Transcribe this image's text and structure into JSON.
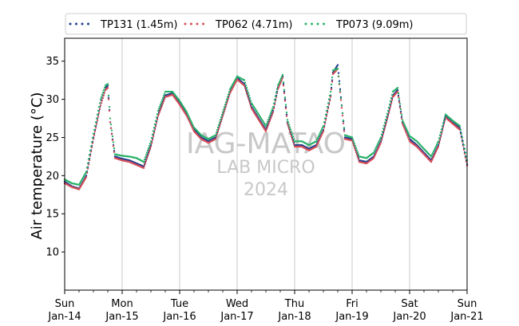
{
  "chart_data": {
    "type": "scatter",
    "title": "",
    "xlabel": "",
    "ylabel": "Air temperature (°C)",
    "ylim": [
      5,
      38
    ],
    "xlim": [
      "2024-01-14",
      "2024-01-21"
    ],
    "yticks": [
      10,
      15,
      20,
      25,
      30,
      35
    ],
    "xticks": [
      {
        "date": "2024-01-14",
        "day": "Sun",
        "label": "Jan-14"
      },
      {
        "date": "2024-01-15",
        "day": "Mon",
        "label": "Jan-15"
      },
      {
        "date": "2024-01-16",
        "day": "Tue",
        "label": "Jan-16"
      },
      {
        "date": "2024-01-17",
        "day": "Wed",
        "label": "Jan-17"
      },
      {
        "date": "2024-01-18",
        "day": "Thu",
        "label": "Jan-18"
      },
      {
        "date": "2024-01-19",
        "day": "Fri",
        "label": "Jan-19"
      },
      {
        "date": "2024-01-20",
        "day": "Sat",
        "label": "Jan-20"
      },
      {
        "date": "2024-01-21",
        "day": "Sun",
        "label": "Jan-21"
      }
    ],
    "grid": "vertical-at-day-ticks",
    "legend": "top",
    "watermark": {
      "line1": "IAG-MATAO",
      "line2": "LAB MICRO",
      "line3": "2024"
    },
    "series": [
      {
        "name": "TP131 (1.45m)",
        "color": "#1f3f8f",
        "x": [
          "2024-01-14 00:00",
          "2024-01-14 03:00",
          "2024-01-14 06:00",
          "2024-01-14 09:00",
          "2024-01-14 12:00",
          "2024-01-14 15:00",
          "2024-01-14 17:00",
          "2024-01-14 18:00",
          "2024-01-14 19:00",
          "2024-01-14 21:00",
          "2024-01-15 00:00",
          "2024-01-15 03:00",
          "2024-01-15 06:00",
          "2024-01-15 09:00",
          "2024-01-15 12:00",
          "2024-01-15 15:00",
          "2024-01-15 18:00",
          "2024-01-15 21:00",
          "2024-01-16 00:00",
          "2024-01-16 03:00",
          "2024-01-16 06:00",
          "2024-01-16 09:00",
          "2024-01-16 12:00",
          "2024-01-16 15:00",
          "2024-01-16 18:00",
          "2024-01-16 21:00",
          "2024-01-17 00:00",
          "2024-01-17 03:00",
          "2024-01-17 06:00",
          "2024-01-17 09:00",
          "2024-01-17 12:00",
          "2024-01-17 15:00",
          "2024-01-17 17:00",
          "2024-01-17 19:00",
          "2024-01-17 21:00",
          "2024-01-18 00:00",
          "2024-01-18 03:00",
          "2024-01-18 06:00",
          "2024-01-18 09:00",
          "2024-01-18 12:00",
          "2024-01-18 15:00",
          "2024-01-18 16:00",
          "2024-01-18 18:00",
          "2024-01-18 21:00",
          "2024-01-19 00:00",
          "2024-01-19 03:00",
          "2024-01-19 06:00",
          "2024-01-19 09:00",
          "2024-01-19 12:00",
          "2024-01-19 15:00",
          "2024-01-19 17:00",
          "2024-01-19 19:00",
          "2024-01-19 21:00",
          "2024-01-20 00:00",
          "2024-01-20 03:00",
          "2024-01-20 06:00",
          "2024-01-20 09:00",
          "2024-01-20 12:00",
          "2024-01-20 15:00",
          "2024-01-20 18:00",
          "2024-01-20 21:00",
          "2024-01-21 00:00"
        ],
        "y": [
          19.2,
          18.6,
          18.3,
          20,
          25,
          29.5,
          31.5,
          31.8,
          27,
          22.5,
          22.2,
          22,
          21.6,
          21.2,
          24,
          28,
          30.5,
          30.8,
          29.5,
          28,
          26,
          25,
          24.5,
          25,
          28,
          31,
          32.8,
          32,
          29,
          27.5,
          26,
          28.5,
          31.5,
          33,
          27,
          24,
          24,
          23.5,
          24,
          26,
          30.5,
          33.5,
          34.5,
          25,
          24.8,
          22,
          21.8,
          22.5,
          24.5,
          28,
          30.5,
          31.2,
          27,
          24.8,
          24,
          23,
          22,
          24,
          27.8,
          27,
          26.2,
          21.5
        ]
      },
      {
        "name": "TP062 (4.71m)",
        "color": "#d6505a",
        "x": [
          "2024-01-14 00:00",
          "2024-01-14 03:00",
          "2024-01-14 06:00",
          "2024-01-14 09:00",
          "2024-01-14 12:00",
          "2024-01-14 15:00",
          "2024-01-14 17:00",
          "2024-01-14 18:00",
          "2024-01-14 19:00",
          "2024-01-14 21:00",
          "2024-01-15 00:00",
          "2024-01-15 03:00",
          "2024-01-15 06:00",
          "2024-01-15 09:00",
          "2024-01-15 12:00",
          "2024-01-15 15:00",
          "2024-01-15 18:00",
          "2024-01-15 21:00",
          "2024-01-16 00:00",
          "2024-01-16 03:00",
          "2024-01-16 06:00",
          "2024-01-16 09:00",
          "2024-01-16 12:00",
          "2024-01-16 15:00",
          "2024-01-16 18:00",
          "2024-01-16 21:00",
          "2024-01-17 00:00",
          "2024-01-17 03:00",
          "2024-01-17 06:00",
          "2024-01-17 09:00",
          "2024-01-17 12:00",
          "2024-01-17 15:00",
          "2024-01-17 17:00",
          "2024-01-17 19:00",
          "2024-01-17 21:00",
          "2024-01-18 00:00",
          "2024-01-18 03:00",
          "2024-01-18 06:00",
          "2024-01-18 09:00",
          "2024-01-18 12:00",
          "2024-01-18 15:00",
          "2024-01-18 16:00",
          "2024-01-18 18:00",
          "2024-01-18 21:00",
          "2024-01-19 00:00",
          "2024-01-19 03:00",
          "2024-01-19 06:00",
          "2024-01-19 09:00",
          "2024-01-19 12:00",
          "2024-01-19 15:00",
          "2024-01-19 17:00",
          "2024-01-19 19:00",
          "2024-01-19 21:00",
          "2024-01-20 00:00",
          "2024-01-20 03:00",
          "2024-01-20 06:00",
          "2024-01-20 09:00",
          "2024-01-20 12:00",
          "2024-01-20 15:00",
          "2024-01-20 18:00",
          "2024-01-20 21:00",
          "2024-01-21 00:00"
        ],
        "y": [
          19,
          18.5,
          18.2,
          19.8,
          24.8,
          29.2,
          31.2,
          31.5,
          27,
          22.3,
          22,
          21.8,
          21.4,
          21,
          23.8,
          27.8,
          30.3,
          30.6,
          29.3,
          27.8,
          25.8,
          24.8,
          24.3,
          24.8,
          27.8,
          30.8,
          32.6,
          31.8,
          28.8,
          27.3,
          25.8,
          28.3,
          31.3,
          32.8,
          26.8,
          23.8,
          23.8,
          23.3,
          23.8,
          25.8,
          30.3,
          33.3,
          34,
          24.8,
          24.6,
          21.8,
          21.6,
          22.3,
          24.3,
          27.8,
          30.3,
          31,
          26.8,
          24.5,
          23.8,
          22.8,
          21.8,
          23.8,
          27.6,
          26.8,
          26,
          21.3
        ]
      },
      {
        "name": "TP073 (9.09m)",
        "color": "#2ab26a",
        "x": [
          "2024-01-14 00:00",
          "2024-01-14 03:00",
          "2024-01-14 06:00",
          "2024-01-14 09:00",
          "2024-01-14 12:00",
          "2024-01-14 15:00",
          "2024-01-14 17:00",
          "2024-01-14 18:00",
          "2024-01-14 19:00",
          "2024-01-14 21:00",
          "2024-01-15 00:00",
          "2024-01-15 03:00",
          "2024-01-15 06:00",
          "2024-01-15 09:00",
          "2024-01-15 12:00",
          "2024-01-15 15:00",
          "2024-01-15 18:00",
          "2024-01-15 21:00",
          "2024-01-16 00:00",
          "2024-01-16 03:00",
          "2024-01-16 06:00",
          "2024-01-16 09:00",
          "2024-01-16 12:00",
          "2024-01-16 15:00",
          "2024-01-16 18:00",
          "2024-01-16 21:00",
          "2024-01-17 00:00",
          "2024-01-17 03:00",
          "2024-01-17 06:00",
          "2024-01-17 09:00",
          "2024-01-17 12:00",
          "2024-01-17 15:00",
          "2024-01-17 17:00",
          "2024-01-17 19:00",
          "2024-01-17 21:00",
          "2024-01-18 00:00",
          "2024-01-18 03:00",
          "2024-01-18 06:00",
          "2024-01-18 09:00",
          "2024-01-18 12:00",
          "2024-01-18 15:00",
          "2024-01-18 16:00",
          "2024-01-18 18:00",
          "2024-01-18 21:00",
          "2024-01-19 00:00",
          "2024-01-19 03:00",
          "2024-01-19 06:00",
          "2024-01-19 09:00",
          "2024-01-19 12:00",
          "2024-01-19 15:00",
          "2024-01-19 17:00",
          "2024-01-19 19:00",
          "2024-01-19 21:00",
          "2024-01-20 00:00",
          "2024-01-20 03:00",
          "2024-01-20 06:00",
          "2024-01-20 09:00",
          "2024-01-20 12:00",
          "2024-01-20 15:00",
          "2024-01-20 18:00",
          "2024-01-20 21:00",
          "2024-01-21 00:00"
        ],
        "y": [
          19.5,
          19,
          18.8,
          20.5,
          25.5,
          30,
          31.8,
          32,
          27.5,
          22.8,
          22.6,
          22.5,
          22.3,
          21.8,
          24.5,
          28.5,
          31,
          31,
          29.8,
          28.3,
          26.3,
          25.3,
          24.8,
          25.3,
          28.3,
          31.3,
          33,
          32.5,
          29.5,
          28,
          26.5,
          29,
          31.8,
          33.2,
          27.3,
          24.5,
          24.5,
          24,
          24.5,
          26.5,
          31,
          33.8,
          34,
          25.3,
          25,
          22.5,
          22.3,
          23,
          25,
          28.5,
          31,
          31.5,
          27.3,
          25.2,
          24.5,
          23.5,
          22.5,
          24.5,
          28,
          27.2,
          26.5,
          22
        ]
      }
    ]
  }
}
